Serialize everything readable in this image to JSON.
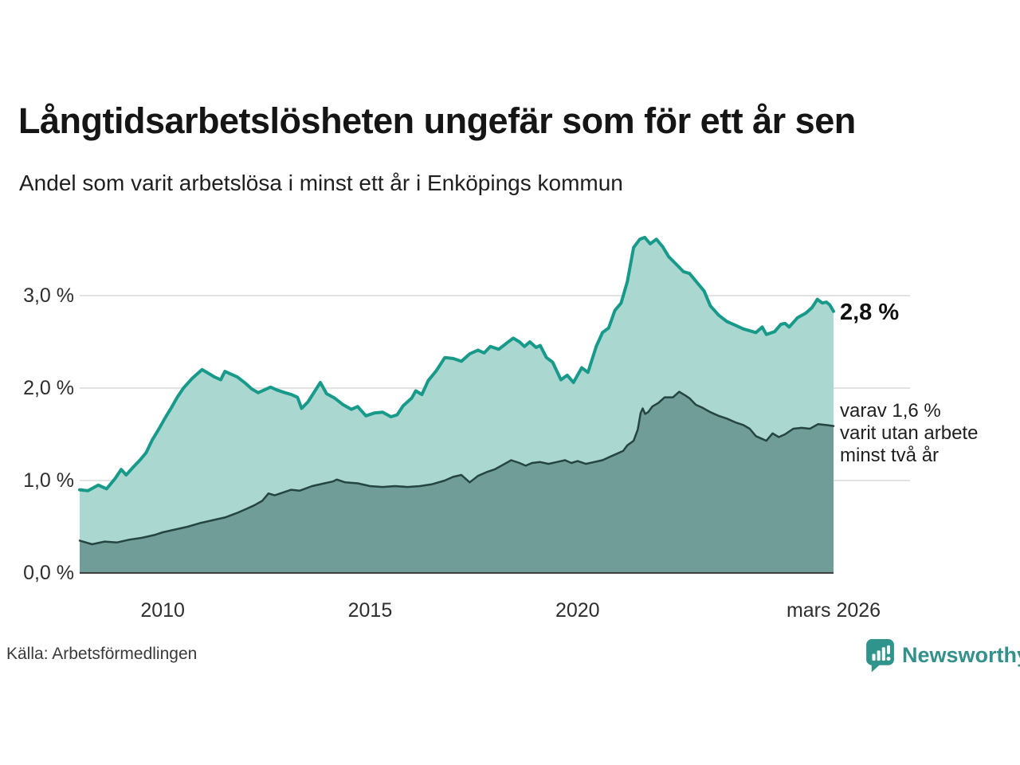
{
  "title": "Långtidsarbetslösheten ungefär som för ett år sen",
  "subtitle": "Andel som varit arbetslösa i minst ett år i Enköpings kommun",
  "source": "Källa: Arbetsförmedlingen",
  "logo": {
    "text": "Newsworthy"
  },
  "annotations": {
    "total_label": "2,8 %",
    "two_year_label": "varav 1,6 %\nvarit utan arbete\nminst två år"
  },
  "chart_data": {
    "type": "area",
    "title": "Långtidsarbetslösheten ungefär som för ett år sen",
    "subtitle": "Andel som varit arbetslösa i minst ett år i Enköpings kommun",
    "x_unit": "year (decimal)",
    "x_range": [
      2008.0,
      2026.17
    ],
    "ylim": [
      0,
      3.8
    ],
    "grid": true,
    "legend_position": "right-annotations",
    "colors": {
      "grid": "#d9d9d9",
      "axis": "#3f3f3f"
    },
    "y_ticks": [
      {
        "value": 0,
        "label": "0,0 %"
      },
      {
        "value": 1,
        "label": "1,0 %"
      },
      {
        "value": 2,
        "label": "2,0 %"
      },
      {
        "value": 3,
        "label": "3,0 %"
      }
    ],
    "x_ticks": [
      {
        "value": 2010,
        "label": "2010"
      },
      {
        "value": 2015,
        "label": "2015"
      },
      {
        "value": 2020,
        "label": "2020"
      },
      {
        "value": 2026.17,
        "label": "mars 2026"
      }
    ],
    "series": [
      {
        "id": "total",
        "name": "Andel som varit arbetslösa i minst ett år",
        "latest_value": "2,8 %",
        "color": "#189a8a",
        "fill": "#abd7d1",
        "stroke_width": 4,
        "points": [
          [
            2008.0,
            0.9
          ],
          [
            2008.2,
            0.89
          ],
          [
            2008.45,
            0.95
          ],
          [
            2008.65,
            0.91
          ],
          [
            2008.85,
            1.02
          ],
          [
            2009.0,
            1.12
          ],
          [
            2009.12,
            1.06
          ],
          [
            2009.3,
            1.15
          ],
          [
            2009.45,
            1.22
          ],
          [
            2009.6,
            1.3
          ],
          [
            2009.75,
            1.44
          ],
          [
            2009.9,
            1.55
          ],
          [
            2010.05,
            1.67
          ],
          [
            2010.2,
            1.78
          ],
          [
            2010.35,
            1.9
          ],
          [
            2010.5,
            2.0
          ],
          [
            2010.7,
            2.1
          ],
          [
            2010.95,
            2.2
          ],
          [
            2011.1,
            2.16
          ],
          [
            2011.25,
            2.12
          ],
          [
            2011.4,
            2.09
          ],
          [
            2011.5,
            2.18
          ],
          [
            2011.65,
            2.15
          ],
          [
            2011.8,
            2.12
          ],
          [
            2012.0,
            2.05
          ],
          [
            2012.15,
            1.99
          ],
          [
            2012.3,
            1.95
          ],
          [
            2012.6,
            2.01
          ],
          [
            2012.75,
            1.98
          ],
          [
            2012.95,
            1.95
          ],
          [
            2013.1,
            1.93
          ],
          [
            2013.25,
            1.9
          ],
          [
            2013.35,
            1.78
          ],
          [
            2013.5,
            1.85
          ],
          [
            2013.8,
            2.06
          ],
          [
            2013.95,
            1.94
          ],
          [
            2014.15,
            1.89
          ],
          [
            2014.35,
            1.82
          ],
          [
            2014.55,
            1.77
          ],
          [
            2014.7,
            1.8
          ],
          [
            2014.9,
            1.7
          ],
          [
            2015.1,
            1.73
          ],
          [
            2015.3,
            1.74
          ],
          [
            2015.5,
            1.69
          ],
          [
            2015.65,
            1.71
          ],
          [
            2015.8,
            1.81
          ],
          [
            2016.0,
            1.89
          ],
          [
            2016.1,
            1.97
          ],
          [
            2016.25,
            1.93
          ],
          [
            2016.4,
            2.08
          ],
          [
            2016.6,
            2.19
          ],
          [
            2016.8,
            2.33
          ],
          [
            2017.0,
            2.32
          ],
          [
            2017.2,
            2.29
          ],
          [
            2017.4,
            2.37
          ],
          [
            2017.6,
            2.41
          ],
          [
            2017.75,
            2.38
          ],
          [
            2017.9,
            2.45
          ],
          [
            2018.1,
            2.42
          ],
          [
            2018.3,
            2.49
          ],
          [
            2018.45,
            2.54
          ],
          [
            2018.6,
            2.5
          ],
          [
            2018.72,
            2.45
          ],
          [
            2018.85,
            2.5
          ],
          [
            2019.0,
            2.44
          ],
          [
            2019.1,
            2.46
          ],
          [
            2019.25,
            2.33
          ],
          [
            2019.4,
            2.28
          ],
          [
            2019.6,
            2.09
          ],
          [
            2019.75,
            2.14
          ],
          [
            2019.9,
            2.06
          ],
          [
            2020.1,
            2.22
          ],
          [
            2020.25,
            2.17
          ],
          [
            2020.45,
            2.45
          ],
          [
            2020.6,
            2.6
          ],
          [
            2020.75,
            2.65
          ],
          [
            2020.9,
            2.84
          ],
          [
            2021.05,
            2.92
          ],
          [
            2021.2,
            3.15
          ],
          [
            2021.35,
            3.52
          ],
          [
            2021.5,
            3.61
          ],
          [
            2021.62,
            3.63
          ],
          [
            2021.75,
            3.56
          ],
          [
            2021.9,
            3.61
          ],
          [
            2022.05,
            3.53
          ],
          [
            2022.2,
            3.42
          ],
          [
            2022.4,
            3.33
          ],
          [
            2022.55,
            3.26
          ],
          [
            2022.7,
            3.24
          ],
          [
            2022.9,
            3.13
          ],
          [
            2023.05,
            3.05
          ],
          [
            2023.2,
            2.89
          ],
          [
            2023.4,
            2.79
          ],
          [
            2023.6,
            2.72
          ],
          [
            2023.8,
            2.68
          ],
          [
            2024.0,
            2.64
          ],
          [
            2024.15,
            2.62
          ],
          [
            2024.3,
            2.6
          ],
          [
            2024.45,
            2.66
          ],
          [
            2024.55,
            2.58
          ],
          [
            2024.75,
            2.61
          ],
          [
            2024.9,
            2.69
          ],
          [
            2025.0,
            2.7
          ],
          [
            2025.1,
            2.66
          ],
          [
            2025.3,
            2.76
          ],
          [
            2025.5,
            2.81
          ],
          [
            2025.65,
            2.87
          ],
          [
            2025.78,
            2.96
          ],
          [
            2025.9,
            2.92
          ],
          [
            2026.0,
            2.93
          ],
          [
            2026.08,
            2.9
          ],
          [
            2026.17,
            2.83
          ]
        ]
      },
      {
        "id": "two-year",
        "name": "varav varit utan arbete minst två år",
        "latest_value": "1,6 %",
        "color": "#254540",
        "fill": "#709d98",
        "stroke_width": 2.5,
        "points": [
          [
            2008.0,
            0.35
          ],
          [
            2008.3,
            0.31
          ],
          [
            2008.6,
            0.34
          ],
          [
            2008.9,
            0.33
          ],
          [
            2009.2,
            0.36
          ],
          [
            2009.5,
            0.38
          ],
          [
            2009.8,
            0.41
          ],
          [
            2010.0,
            0.44
          ],
          [
            2010.3,
            0.47
          ],
          [
            2010.6,
            0.5
          ],
          [
            2010.9,
            0.54
          ],
          [
            2011.2,
            0.57
          ],
          [
            2011.5,
            0.6
          ],
          [
            2011.8,
            0.65
          ],
          [
            2012.0,
            0.69
          ],
          [
            2012.2,
            0.73
          ],
          [
            2012.4,
            0.78
          ],
          [
            2012.55,
            0.86
          ],
          [
            2012.7,
            0.84
          ],
          [
            2012.9,
            0.87
          ],
          [
            2013.1,
            0.9
          ],
          [
            2013.3,
            0.89
          ],
          [
            2013.6,
            0.94
          ],
          [
            2013.9,
            0.97
          ],
          [
            2014.1,
            0.99
          ],
          [
            2014.2,
            1.01
          ],
          [
            2014.4,
            0.98
          ],
          [
            2014.7,
            0.97
          ],
          [
            2015.0,
            0.94
          ],
          [
            2015.3,
            0.93
          ],
          [
            2015.6,
            0.94
          ],
          [
            2015.9,
            0.93
          ],
          [
            2016.2,
            0.94
          ],
          [
            2016.5,
            0.96
          ],
          [
            2016.8,
            1.0
          ],
          [
            2017.0,
            1.04
          ],
          [
            2017.2,
            1.06
          ],
          [
            2017.4,
            0.98
          ],
          [
            2017.6,
            1.05
          ],
          [
            2017.8,
            1.09
          ],
          [
            2018.0,
            1.12
          ],
          [
            2018.2,
            1.17
          ],
          [
            2018.4,
            1.22
          ],
          [
            2018.6,
            1.19
          ],
          [
            2018.75,
            1.16
          ],
          [
            2018.9,
            1.19
          ],
          [
            2019.1,
            1.2
          ],
          [
            2019.3,
            1.18
          ],
          [
            2019.5,
            1.2
          ],
          [
            2019.7,
            1.22
          ],
          [
            2019.85,
            1.19
          ],
          [
            2020.0,
            1.21
          ],
          [
            2020.2,
            1.18
          ],
          [
            2020.4,
            1.2
          ],
          [
            2020.6,
            1.22
          ],
          [
            2020.8,
            1.26
          ],
          [
            2021.0,
            1.3
          ],
          [
            2021.1,
            1.32
          ],
          [
            2021.2,
            1.38
          ],
          [
            2021.35,
            1.43
          ],
          [
            2021.45,
            1.55
          ],
          [
            2021.52,
            1.73
          ],
          [
            2021.57,
            1.78
          ],
          [
            2021.63,
            1.72
          ],
          [
            2021.7,
            1.74
          ],
          [
            2021.8,
            1.8
          ],
          [
            2021.95,
            1.84
          ],
          [
            2022.1,
            1.9
          ],
          [
            2022.3,
            1.9
          ],
          [
            2022.45,
            1.96
          ],
          [
            2022.6,
            1.92
          ],
          [
            2022.7,
            1.89
          ],
          [
            2022.85,
            1.82
          ],
          [
            2023.0,
            1.79
          ],
          [
            2023.2,
            1.74
          ],
          [
            2023.4,
            1.7
          ],
          [
            2023.6,
            1.67
          ],
          [
            2023.8,
            1.63
          ],
          [
            2024.0,
            1.6
          ],
          [
            2024.15,
            1.56
          ],
          [
            2024.3,
            1.48
          ],
          [
            2024.45,
            1.45
          ],
          [
            2024.55,
            1.43
          ],
          [
            2024.7,
            1.51
          ],
          [
            2024.85,
            1.47
          ],
          [
            2025.0,
            1.5
          ],
          [
            2025.2,
            1.56
          ],
          [
            2025.4,
            1.57
          ],
          [
            2025.6,
            1.56
          ],
          [
            2025.8,
            1.61
          ],
          [
            2026.0,
            1.6
          ],
          [
            2026.17,
            1.59
          ]
        ]
      }
    ]
  }
}
